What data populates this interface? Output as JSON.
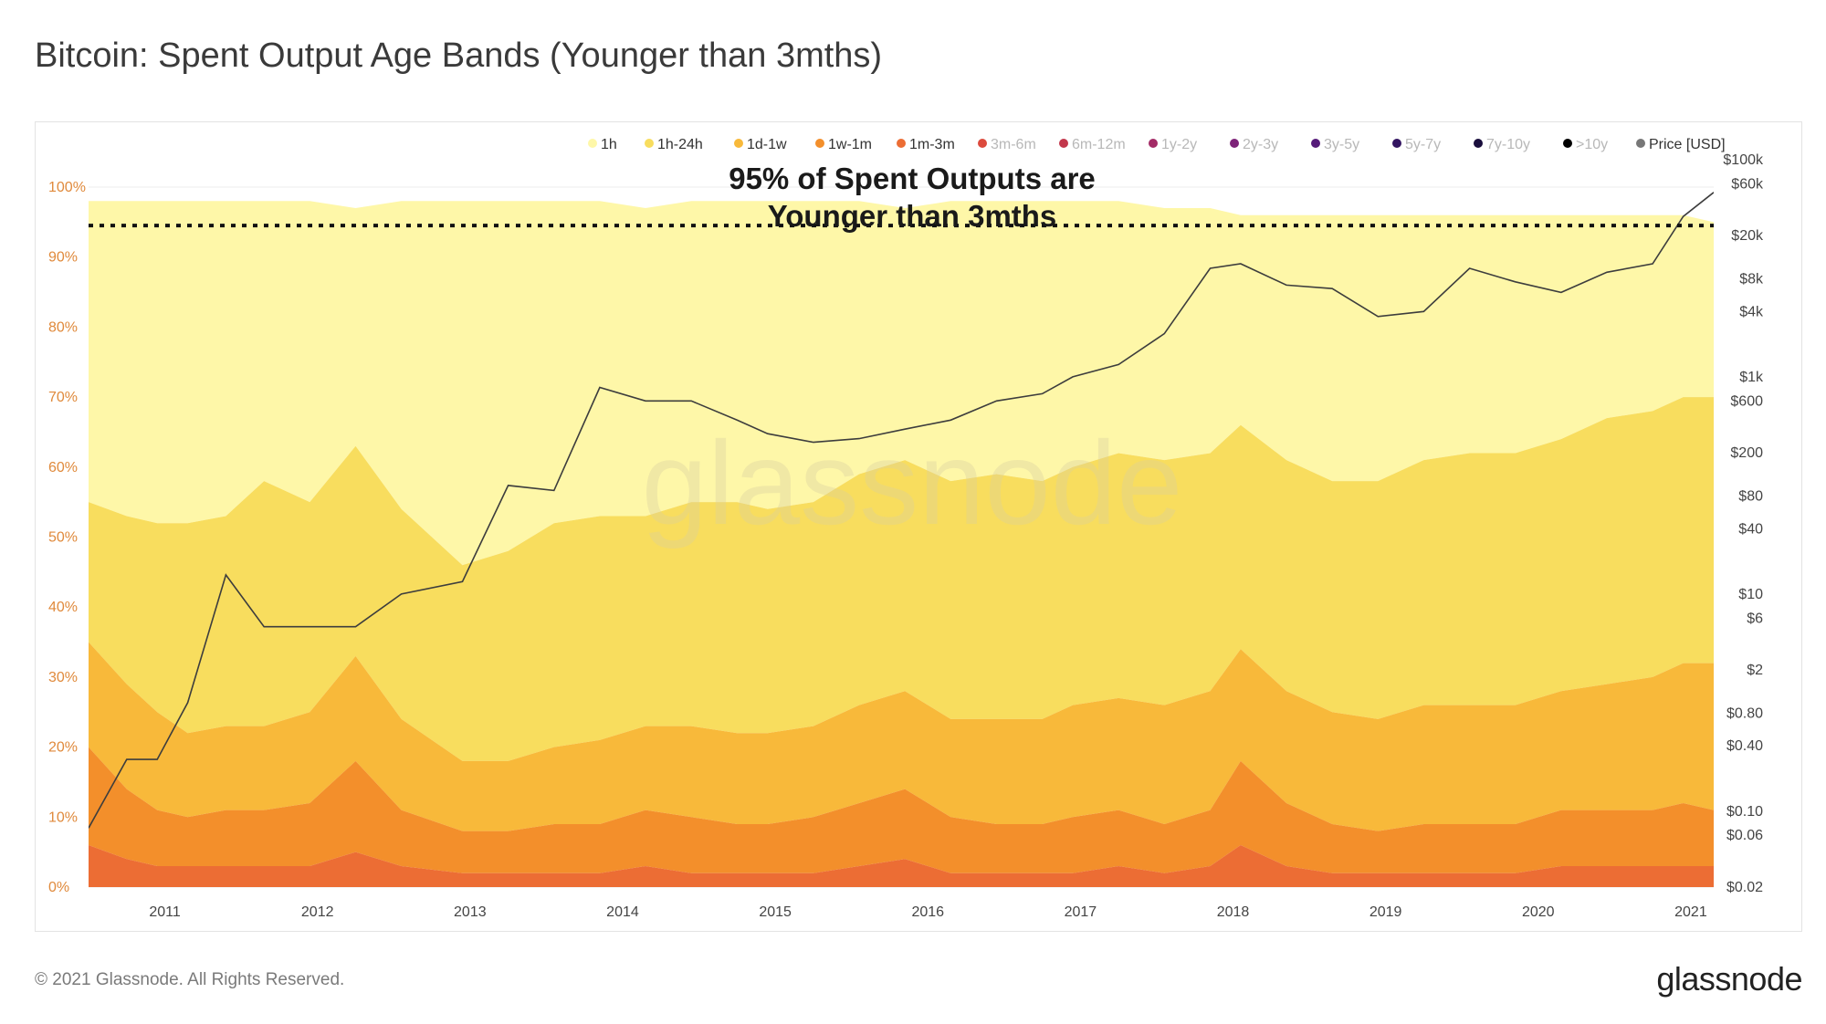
{
  "header": {
    "title": "Bitcoin: Spent Output Age Bands (Younger than 3mths)"
  },
  "footer": {
    "copyright": "© 2021 Glassnode. All Rights Reserved.",
    "logo": "glassnode"
  },
  "chart_data": {
    "type": "area",
    "stacked": true,
    "watermark": "glassnode",
    "annotation": {
      "lines": [
        "95% of Spent Outputs are",
        "Younger than 3mths"
      ],
      "level_percent": 94.5
    },
    "legend": [
      {
        "name": "1h",
        "color": "#fef7a8",
        "active": true
      },
      {
        "name": "1h-24h",
        "color": "#f8dd5e",
        "active": true
      },
      {
        "name": "1d-1w",
        "color": "#f8b93a",
        "active": true
      },
      {
        "name": "1w-1m",
        "color": "#f38f2b",
        "active": true
      },
      {
        "name": "1m-3m",
        "color": "#ec6d34",
        "active": true
      },
      {
        "name": "3m-6m",
        "color": "#dc4a3d",
        "active": false
      },
      {
        "name": "6m-12m",
        "color": "#c2374c",
        "active": false
      },
      {
        "name": "1y-2y",
        "color": "#a32b66",
        "active": false
      },
      {
        "name": "2y-3y",
        "color": "#7d2278",
        "active": false
      },
      {
        "name": "3y-5y",
        "color": "#561b7a",
        "active": false
      },
      {
        "name": "5y-7y",
        "color": "#331561",
        "active": false
      },
      {
        "name": "7y-10y",
        "color": "#1a0e3d",
        "active": false
      },
      {
        "name": ">10y",
        "color": "#000000",
        "active": false
      },
      {
        "name": "Price [USD]",
        "color": "#777777",
        "active": true
      }
    ],
    "x_ticks": [
      "2011",
      "2012",
      "2013",
      "2014",
      "2015",
      "2016",
      "2017",
      "2018",
      "2019",
      "2020",
      "2021"
    ],
    "x_range": [
      2010.55,
      2021.2
    ],
    "y_left": {
      "ticks": [
        "100%",
        "90%",
        "80%",
        "70%",
        "60%",
        "50%",
        "40%",
        "30%",
        "20%",
        "10%",
        "0%"
      ],
      "range": [
        0,
        100
      ]
    },
    "y_right": {
      "scale": "log",
      "ticks": [
        {
          "label": "$100k",
          "value": 100000
        },
        {
          "label": "$60k",
          "value": 60000
        },
        {
          "label": "$20k",
          "value": 20000
        },
        {
          "label": "$8k",
          "value": 8000
        },
        {
          "label": "$4k",
          "value": 4000
        },
        {
          "label": "$1k",
          "value": 1000
        },
        {
          "label": "$600",
          "value": 600
        },
        {
          "label": "$200",
          "value": 200
        },
        {
          "label": "$80",
          "value": 80
        },
        {
          "label": "$40",
          "value": 40
        },
        {
          "label": "$10",
          "value": 10
        },
        {
          "label": "$6",
          "value": 6
        },
        {
          "label": "$2",
          "value": 2
        },
        {
          "label": "$0.80",
          "value": 0.8
        },
        {
          "label": "$0.40",
          "value": 0.4
        },
        {
          "label": "$0.10",
          "value": 0.1
        },
        {
          "label": "$0.06",
          "value": 0.06
        },
        {
          "label": "$0.02",
          "value": 0.02
        }
      ]
    },
    "dates": [
      2010.55,
      2010.8,
      2011.0,
      2011.2,
      2011.45,
      2011.7,
      2012.0,
      2012.3,
      2012.6,
      2013.0,
      2013.3,
      2013.6,
      2013.9,
      2014.2,
      2014.5,
      2014.8,
      2015.0,
      2015.3,
      2015.6,
      2015.9,
      2016.2,
      2016.5,
      2016.8,
      2017.0,
      2017.3,
      2017.6,
      2017.9,
      2018.1,
      2018.4,
      2018.7,
      2019.0,
      2019.3,
      2019.6,
      2019.9,
      2020.2,
      2020.5,
      2020.8,
      2021.0,
      2021.2
    ],
    "series": [
      {
        "name": "1m-3m",
        "values": [
          6,
          4,
          3,
          3,
          3,
          3,
          3,
          5,
          3,
          2,
          2,
          2,
          2,
          3,
          2,
          2,
          2,
          2,
          3,
          4,
          2,
          2,
          2,
          2,
          3,
          2,
          3,
          6,
          3,
          2,
          2,
          2,
          2,
          2,
          3,
          3,
          3,
          3,
          3
        ]
      },
      {
        "name": "1w-1m",
        "values": [
          14,
          10,
          8,
          7,
          8,
          8,
          9,
          13,
          8,
          6,
          6,
          7,
          7,
          8,
          8,
          7,
          7,
          8,
          9,
          10,
          8,
          7,
          7,
          8,
          8,
          7,
          8,
          12,
          9,
          7,
          6,
          7,
          7,
          7,
          8,
          8,
          8,
          9,
          8
        ]
      },
      {
        "name": "1d-1w",
        "values": [
          15,
          15,
          14,
          12,
          12,
          12,
          13,
          15,
          13,
          10,
          10,
          11,
          12,
          12,
          13,
          13,
          13,
          13,
          14,
          14,
          14,
          15,
          15,
          16,
          16,
          17,
          17,
          16,
          16,
          16,
          16,
          17,
          17,
          17,
          17,
          18,
          19,
          20,
          21
        ]
      },
      {
        "name": "1h-24h",
        "values": [
          20,
          24,
          27,
          30,
          30,
          35,
          30,
          30,
          30,
          28,
          30,
          32,
          32,
          30,
          32,
          33,
          32,
          32,
          33,
          33,
          34,
          35,
          34,
          34,
          35,
          35,
          34,
          32,
          33,
          33,
          34,
          35,
          36,
          36,
          36,
          38,
          38,
          38,
          38
        ]
      },
      {
        "name": "1h",
        "values": [
          43,
          45,
          46,
          46,
          45,
          40,
          43,
          34,
          44,
          52,
          50,
          46,
          45,
          44,
          43,
          43,
          44,
          43,
          39,
          36,
          40,
          39,
          40,
          38,
          36,
          36,
          35,
          30,
          35,
          38,
          38,
          35,
          34,
          34,
          32,
          29,
          28,
          26,
          25
        ]
      },
      {
        "name": "Price [USD]",
        "axis": "right",
        "values": [
          0.07,
          0.3,
          0.3,
          1.0,
          15,
          5,
          5,
          5,
          10,
          13,
          100,
          90,
          800,
          600,
          600,
          400,
          300,
          250,
          270,
          330,
          400,
          600,
          700,
          1000,
          1300,
          2500,
          10000,
          11000,
          7000,
          6500,
          3600,
          4000,
          10000,
          7500,
          6000,
          9200,
          11000,
          30000,
          50000
        ]
      }
    ]
  }
}
